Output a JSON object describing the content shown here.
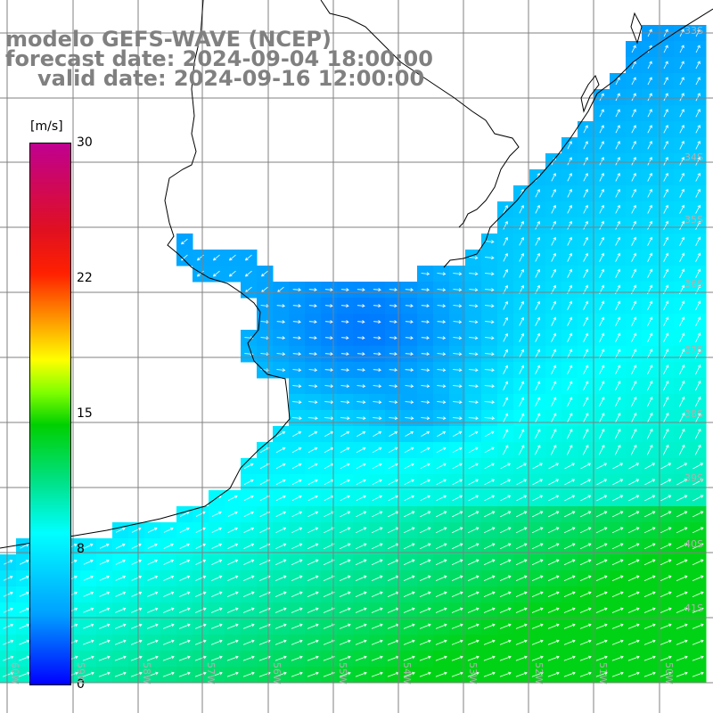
{
  "title": {
    "line1": "modelo GEFS-WAVE (NCEP)",
    "line2": "forecast date: 2024-09-04 18:00:00",
    "line3": "valid date: 2024-09-16 12:00:00"
  },
  "colorbar": {
    "unit": "[m/s]",
    "ticks": [
      "30",
      "22",
      "15",
      "8",
      "0"
    ],
    "tick_values": [
      30,
      22,
      15,
      8,
      0
    ]
  },
  "lon_labels": [
    "60W",
    "59W",
    "58W",
    "57W",
    "56W",
    "55W",
    "54W",
    "53W",
    "52W",
    "51W",
    "50W"
  ],
  "lat_labels": [
    "33S",
    "34S",
    "35S",
    "36S",
    "37S",
    "38S",
    "39S",
    "40S",
    "41S"
  ],
  "colors": {
    "land": "#ffffff",
    "grid": "#808080",
    "coast": "#000000",
    "arrows": "#ffffff"
  }
}
